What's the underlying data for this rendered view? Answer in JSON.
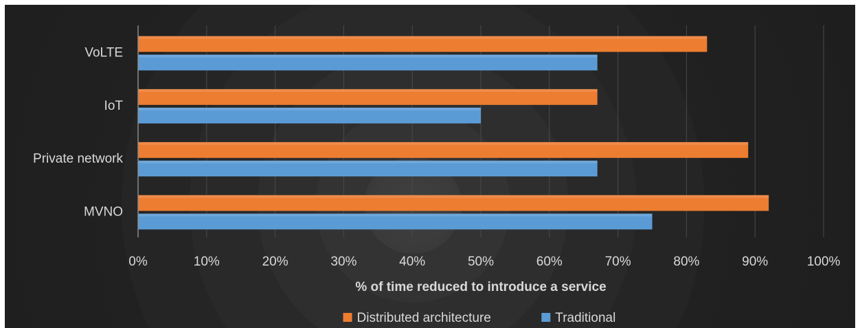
{
  "chart_data": {
    "type": "bar",
    "orientation": "horizontal",
    "categories": [
      "VoLTE",
      "IoT",
      "Private network",
      "MVNO"
    ],
    "series": [
      {
        "name": "Distributed architecture",
        "color": "#ed7d31",
        "values": [
          83,
          67,
          89,
          92
        ]
      },
      {
        "name": "Traditional",
        "color": "#5b9bd5",
        "values": [
          67,
          50,
          67,
          75
        ]
      }
    ],
    "xlabel": "% of time reduced to introduce a service",
    "xlim": [
      0,
      100
    ],
    "x_ticks": [
      "0%",
      "10%",
      "20%",
      "30%",
      "40%",
      "50%",
      "60%",
      "70%",
      "80%",
      "90%",
      "100%"
    ],
    "x_tick_values": [
      0,
      10,
      20,
      30,
      40,
      50,
      60,
      70,
      80,
      90,
      100
    ],
    "grid": "vertical",
    "legend": "bottom-center",
    "background": "#262626",
    "text_color": "#d9d9d9"
  }
}
